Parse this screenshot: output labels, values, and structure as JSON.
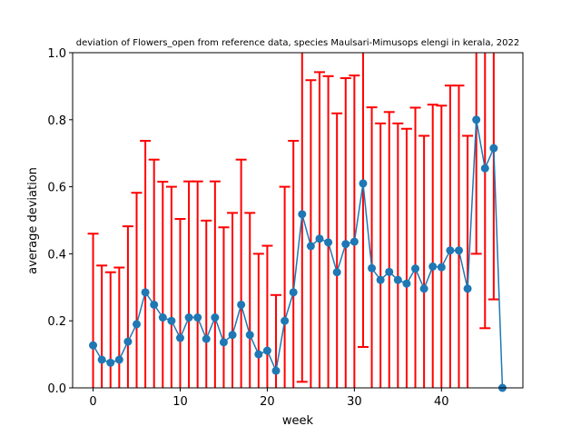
{
  "chart_data": {
    "type": "line",
    "title": "deviation of Flowers_open from reference data, species Maulsari-Mimusops elengi in kerala, 2022",
    "xlabel": "week",
    "ylabel": "average deviation",
    "xlim": [
      -2.35,
      49.35
    ],
    "ylim": [
      0,
      1
    ],
    "xticks": [
      0,
      10,
      20,
      30,
      40
    ],
    "yticks": [
      0.0,
      0.2,
      0.4,
      0.6,
      0.8,
      1.0
    ],
    "ytick_labels": [
      "0.0",
      "0.2",
      "0.4",
      "0.6",
      "0.8",
      "1.0"
    ],
    "grid": false,
    "legend": "none",
    "line_color": "#1f77b4",
    "errorbar_color": "#ff0000",
    "x": [
      0,
      1,
      2,
      3,
      4,
      5,
      6,
      7,
      8,
      9,
      10,
      11,
      12,
      13,
      14,
      15,
      16,
      17,
      18,
      19,
      20,
      21,
      22,
      23,
      24,
      25,
      26,
      27,
      28,
      29,
      30,
      31,
      32,
      33,
      34,
      35,
      36,
      37,
      38,
      39,
      40,
      41,
      42,
      43,
      44,
      45,
      46,
      47
    ],
    "values": [
      0.127,
      0.084,
      0.075,
      0.084,
      0.138,
      0.19,
      0.285,
      0.248,
      0.21,
      0.2,
      0.149,
      0.21,
      0.21,
      0.146,
      0.21,
      0.136,
      0.158,
      0.248,
      0.158,
      0.1,
      0.111,
      0.051,
      0.2,
      0.285,
      0.518,
      0.423,
      0.445,
      0.434,
      0.345,
      0.429,
      0.436,
      0.61,
      0.357,
      0.322,
      0.346,
      0.322,
      0.311,
      0.356,
      0.296,
      0.362,
      0.36,
      0.41,
      0.41,
      0.296,
      0.8,
      0.655,
      0.715,
      0.0
    ],
    "errors": [
      0.333,
      0.281,
      0.27,
      0.275,
      0.344,
      0.392,
      0.452,
      0.433,
      0.405,
      0.4,
      0.355,
      0.406,
      0.406,
      0.353,
      0.406,
      0.343,
      0.364,
      0.433,
      0.364,
      0.3,
      0.313,
      0.226,
      0.4,
      0.452,
      0.5,
      0.495,
      0.497,
      0.496,
      0.474,
      0.495,
      0.496,
      0.488,
      0.48,
      0.467,
      0.477,
      0.467,
      0.462,
      0.48,
      0.456,
      0.483,
      0.482,
      0.492,
      0.492,
      0.456,
      0.4,
      0.477,
      0.451,
      0.0
    ]
  }
}
